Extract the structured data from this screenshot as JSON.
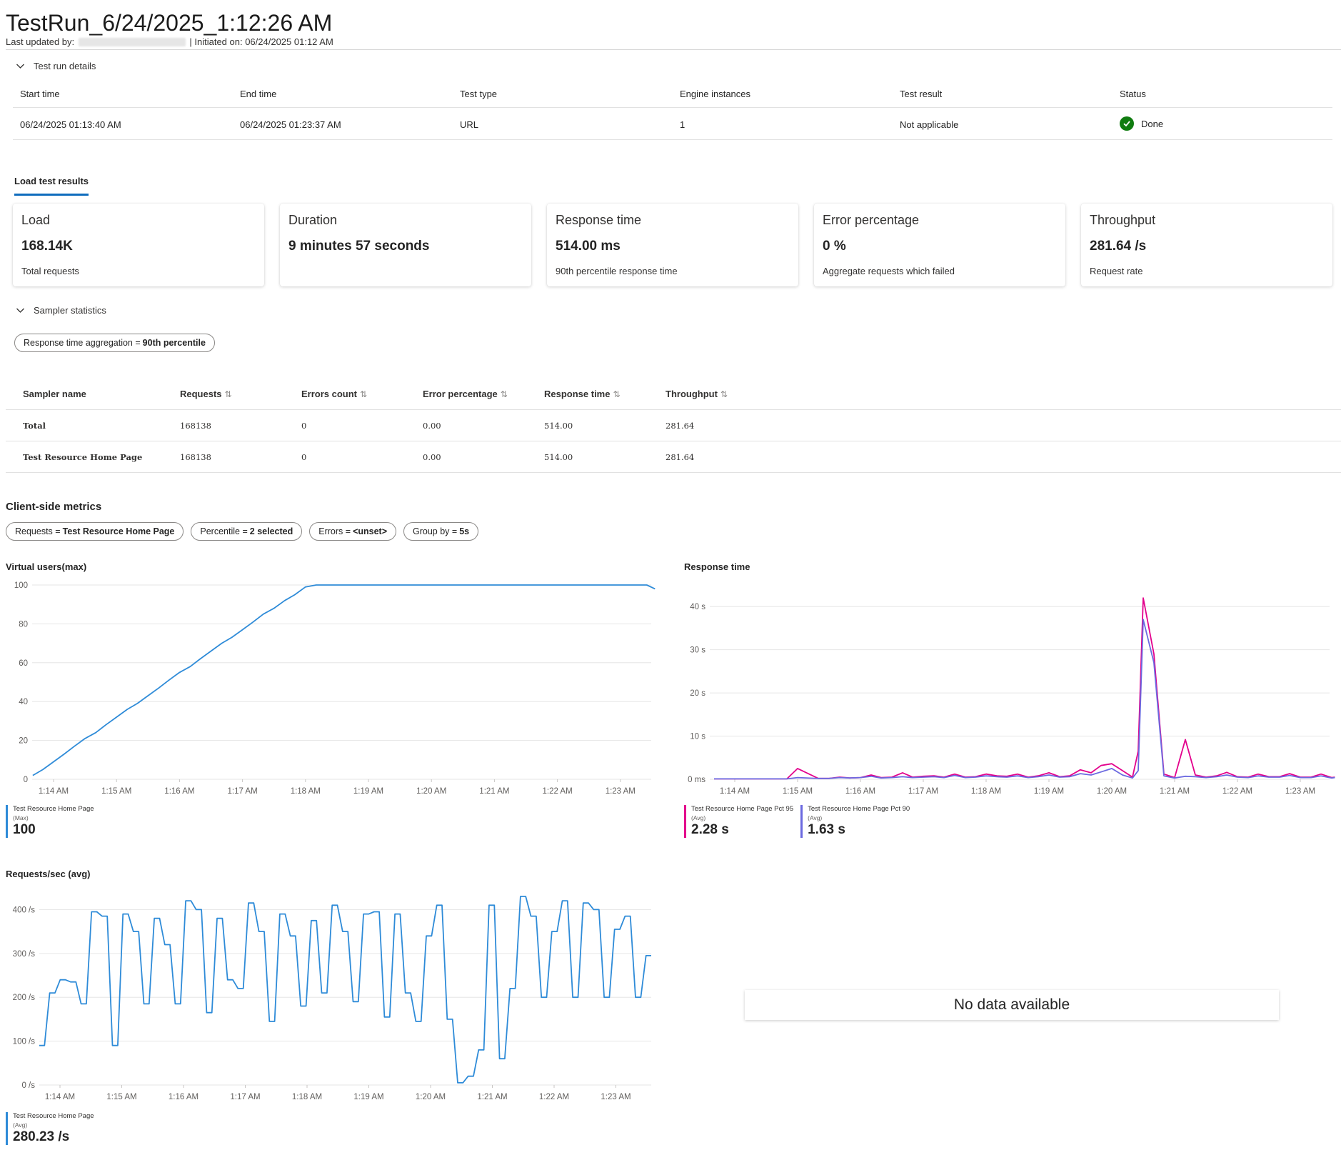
{
  "header": {
    "title": "TestRun_6/24/2025_1:12:26 AM",
    "last_updated_label": "Last updated by:",
    "initiated": "| Initiated on: 06/24/2025 01:12 AM"
  },
  "details": {
    "toggle_label": "Test run details",
    "columns": [
      "Start time",
      "End time",
      "Test type",
      "Engine instances",
      "Test result",
      "Status"
    ],
    "row": {
      "start": "06/24/2025 01:13:40 AM",
      "end": "06/24/2025 01:23:37 AM",
      "type": "URL",
      "engines": "1",
      "result": "Not applicable",
      "status": "Done"
    }
  },
  "tab": {
    "label": "Load test results"
  },
  "cards": [
    {
      "title": "Load",
      "value": "168.14K",
      "sub": "Total requests"
    },
    {
      "title": "Duration",
      "value": "9 minutes 57 seconds",
      "sub": ""
    },
    {
      "title": "Response time",
      "value": "514.00 ms",
      "sub": "90th percentile response time"
    },
    {
      "title": "Error percentage",
      "value": "0 %",
      "sub": "Aggregate requests which failed"
    },
    {
      "title": "Throughput",
      "value": "281.64 /s",
      "sub": "Request rate"
    }
  ],
  "sampler": {
    "toggle_label": "Sampler statistics",
    "filter": {
      "key": "Response time aggregation",
      "op": "=",
      "value": "90th percentile"
    },
    "columns": [
      "Sampler name",
      "Requests",
      "Errors count",
      "Error percentage",
      "Response time",
      "Throughput"
    ],
    "rows": [
      {
        "name": "Total",
        "requests": "168138",
        "errors": "0",
        "error_pct": "0.00",
        "response": "514.00",
        "throughput": "281.64"
      },
      {
        "name": "Test Resource Home Page",
        "requests": "168138",
        "errors": "0",
        "error_pct": "0.00",
        "response": "514.00",
        "throughput": "281.64"
      }
    ]
  },
  "client_metrics": {
    "label": "Client-side metrics",
    "filters": [
      {
        "key": "Requests",
        "op": "=",
        "value": "Test Resource Home Page"
      },
      {
        "key": "Percentile",
        "op": "=",
        "value": "2 selected"
      },
      {
        "key": "Errors",
        "op": "=",
        "value": "<unset>"
      },
      {
        "key": "Group by",
        "op": "=",
        "value": "5s"
      }
    ]
  },
  "colors": {
    "accent": "#0f6cbd",
    "series_blue": "#2e8bd8",
    "series_pink": "#e3008c",
    "series_purple": "#6b69e0",
    "success": "#107c10"
  },
  "chart_data": [
    {
      "type": "line",
      "title": "Virtual users(max)",
      "x_ticks": [
        "1:14 AM",
        "1:15 AM",
        "1:16 AM",
        "1:17 AM",
        "1:18 AM",
        "1:19 AM",
        "1:20 AM",
        "1:21 AM",
        "1:22 AM",
        "1:23 AM"
      ],
      "y_ticks": [
        "0",
        "20",
        "40",
        "60",
        "80",
        "100"
      ],
      "ylim": [
        0,
        100
      ],
      "x_minutes": [
        13.67,
        13.83,
        14.0,
        14.17,
        14.33,
        14.5,
        14.67,
        14.83,
        15.0,
        15.17,
        15.33,
        15.5,
        15.67,
        15.83,
        16.0,
        16.17,
        16.33,
        16.5,
        16.67,
        16.83,
        17.0,
        17.17,
        17.33,
        17.5,
        17.67,
        17.83,
        18.0,
        18.17,
        18.33,
        18.5,
        18.67,
        18.83,
        19.0,
        20.0,
        21.0,
        22.0,
        23.0,
        23.42,
        23.55
      ],
      "series": [
        {
          "name": "Test Resource Home Page",
          "aggregation": "(Max)",
          "summary": "100",
          "values": [
            2,
            5,
            9,
            13,
            17,
            21,
            24,
            28,
            32,
            36,
            39,
            43,
            47,
            51,
            55,
            58,
            62,
            66,
            70,
            73,
            77,
            81,
            85,
            88,
            92,
            95,
            99,
            100,
            100,
            100,
            100,
            100,
            100,
            100,
            100,
            100,
            100,
            100,
            98
          ]
        }
      ]
    },
    {
      "type": "line",
      "title": "Response time",
      "x_ticks": [
        "1:14 AM",
        "1:15 AM",
        "1:16 AM",
        "1:17 AM",
        "1:18 AM",
        "1:19 AM",
        "1:20 AM",
        "1:21 AM",
        "1:22 AM",
        "1:23 AM"
      ],
      "y_ticks": [
        "0 ms",
        "10 s",
        "20 s",
        "30 s",
        "40 s"
      ],
      "ylim": [
        0,
        45
      ],
      "x_minutes": [
        13.67,
        14.0,
        14.5,
        14.83,
        15.0,
        15.33,
        15.5,
        15.67,
        15.83,
        16.0,
        16.17,
        16.33,
        16.5,
        16.67,
        16.83,
        17.0,
        17.17,
        17.33,
        17.5,
        17.67,
        17.83,
        18.0,
        18.17,
        18.33,
        18.5,
        18.67,
        18.83,
        19.0,
        19.17,
        19.33,
        19.5,
        19.67,
        19.83,
        20.0,
        20.17,
        20.33,
        20.42,
        20.5,
        20.67,
        20.83,
        21.0,
        21.17,
        21.33,
        21.5,
        21.67,
        21.83,
        22.0,
        22.17,
        22.33,
        22.5,
        22.67,
        22.83,
        23.0,
        23.17,
        23.33,
        23.5,
        23.55
      ],
      "series": [
        {
          "name": "Test Resource Home Page Pct 95",
          "aggregation": "(Avg)",
          "summary": "2.28 s",
          "values": [
            0.1,
            0.1,
            0.1,
            0.1,
            2.5,
            0.2,
            0.2,
            0.5,
            0.3,
            0.4,
            1,
            0.4,
            0.5,
            1.5,
            0.5,
            0.7,
            0.8,
            0.5,
            1.2,
            0.5,
            0.6,
            1.2,
            0.8,
            0.7,
            1.2,
            0.5,
            0.8,
            1.5,
            0.6,
            0.8,
            2.2,
            1.5,
            3.2,
            3.6,
            2,
            0.5,
            6.5,
            42,
            29,
            1.2,
            0.4,
            9.2,
            1,
            0.5,
            0.8,
            1.6,
            0.6,
            0.5,
            1.2,
            0.6,
            0.6,
            1.3,
            0.5,
            0.5,
            1.2,
            0.4,
            0.5
          ]
        },
        {
          "name": "Test Resource Home Page Pct 90",
          "aggregation": "(Avg)",
          "summary": "1.63 s",
          "values": [
            0.1,
            0.1,
            0.1,
            0.1,
            0.4,
            0.2,
            0.2,
            0.4,
            0.3,
            0.4,
            0.7,
            0.3,
            0.4,
            0.6,
            0.4,
            0.5,
            0.6,
            0.4,
            0.9,
            0.4,
            0.5,
            0.8,
            0.6,
            0.5,
            0.8,
            0.4,
            0.6,
            1,
            0.5,
            0.6,
            1.3,
            1,
            1.7,
            2.5,
            1,
            0.3,
            2,
            37,
            27,
            0.8,
            0.3,
            0.7,
            0.6,
            0.4,
            0.6,
            1,
            0.5,
            0.4,
            0.8,
            0.5,
            0.5,
            0.9,
            0.4,
            0.4,
            0.8,
            0.3,
            0.4
          ]
        }
      ]
    },
    {
      "type": "line",
      "title": "Requests/sec (avg)",
      "x_ticks": [
        "1:14 AM",
        "1:15 AM",
        "1:16 AM",
        "1:17 AM",
        "1:18 AM",
        "1:19 AM",
        "1:20 AM",
        "1:21 AM",
        "1:22 AM",
        "1:23 AM"
      ],
      "y_ticks": [
        "0 /s",
        "100 /s",
        "200 /s",
        "300 /s",
        "400 /s"
      ],
      "ylim": [
        0,
        430
      ],
      "series": [
        {
          "name": "Test Resource Home Page",
          "aggregation": "(Avg)",
          "summary": "280.23 /s",
          "values": [
            90,
            90,
            210,
            210,
            240,
            240,
            235,
            235,
            185,
            185,
            395,
            395,
            385,
            385,
            90,
            90,
            390,
            390,
            350,
            350,
            185,
            185,
            380,
            380,
            320,
            320,
            185,
            185,
            420,
            420,
            400,
            400,
            165,
            165,
            380,
            380,
            240,
            240,
            220,
            220,
            415,
            415,
            350,
            350,
            145,
            145,
            390,
            390,
            340,
            340,
            180,
            180,
            375,
            375,
            210,
            210,
            410,
            410,
            350,
            350,
            190,
            190,
            390,
            390,
            395,
            395,
            155,
            155,
            390,
            390,
            210,
            210,
            145,
            145,
            340,
            340,
            410,
            410,
            150,
            150,
            5,
            5,
            20,
            20,
            80,
            80,
            410,
            410,
            60,
            60,
            220,
            220,
            430,
            430,
            385,
            385,
            200,
            200,
            350,
            350,
            420,
            420,
            200,
            200,
            415,
            415,
            400,
            400,
            200,
            200,
            355,
            355,
            385,
            385,
            200,
            200,
            295,
            295
          ]
        }
      ]
    }
  ],
  "no_data": "No data available"
}
